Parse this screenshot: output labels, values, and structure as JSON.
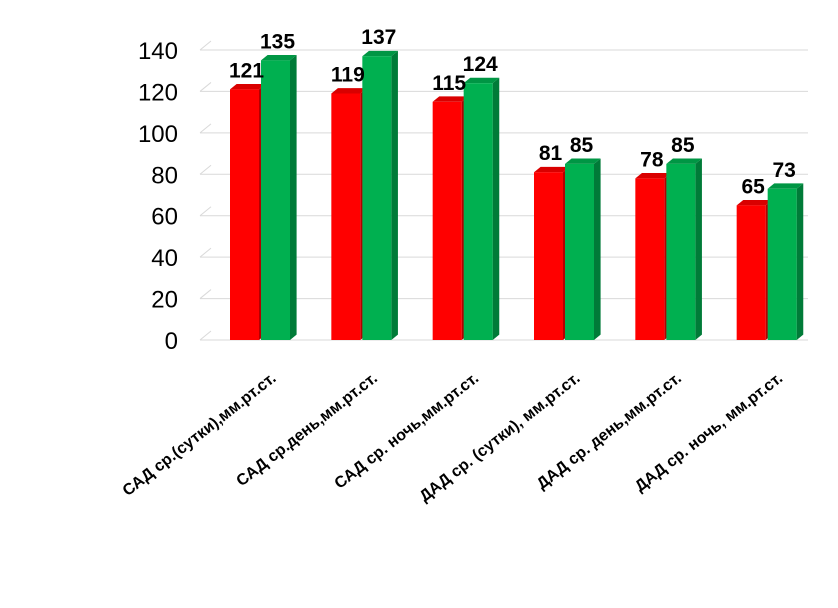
{
  "chart_data": {
    "type": "bar",
    "categories": [
      "САД ср.(сутки),мм.рт.ст.",
      "САД ср.день,мм.рт.ст.",
      "САД ср. ночь,мм.рт.ст.",
      "ДАД ср. (сутки), мм.рт.ст.",
      "ДАД ср. день,мм.рт.ст.",
      "ДАД ср. ночь, мм.рт.ст."
    ],
    "series": [
      {
        "values": [
          121,
          119,
          115,
          81,
          78,
          65
        ],
        "color": "#ff0000"
      },
      {
        "values": [
          135,
          137,
          124,
          85,
          85,
          73
        ],
        "color": "#00b050"
      }
    ],
    "ylim": [
      0,
      140
    ],
    "yticks": [
      0,
      20,
      40,
      60,
      80,
      100,
      120,
      140
    ],
    "grid": true,
    "legend": "none",
    "title": "",
    "xlabel": "",
    "ylabel": ""
  }
}
